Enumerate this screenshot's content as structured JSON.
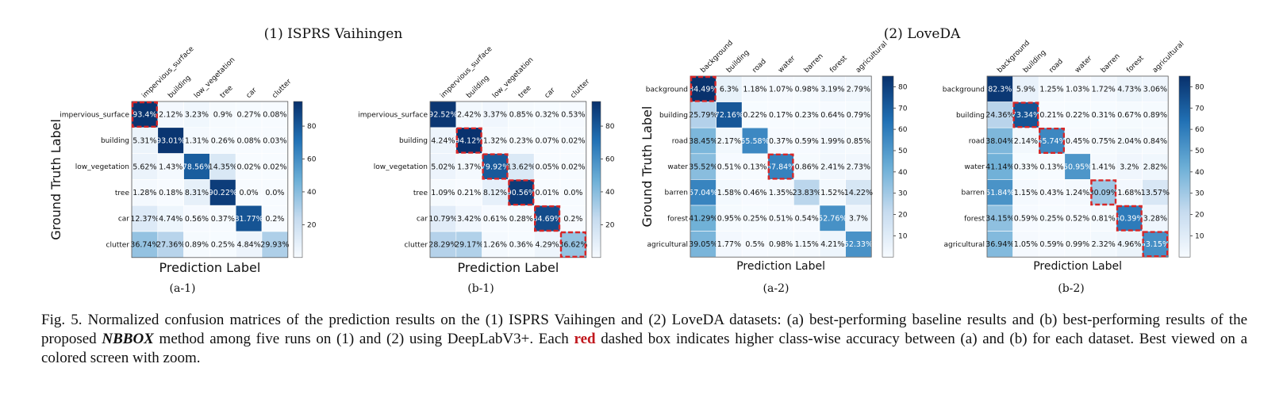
{
  "group_titles": [
    "(1) ISPRS Vaihingen",
    "(2) LoveDA"
  ],
  "caption": {
    "lead": "Fig. 5.",
    "part1": "  Normalized confusion matrices of the prediction results on the (1) ISPRS Vaihingen and (2) LoveDA datasets: (a) best-performing baseline results and (b) best-performing results of the proposed ",
    "method": "NBBOX",
    "part2": " method among five runs on (1) and (2) using DeepLabV3+. Each ",
    "red_word": "red",
    "part3": " dashed box indicates higher class-wise accuracy between (a) and (b) for each dataset. Best viewed on a colored screen with zoom."
  },
  "colors": {
    "cmap_low": "#f7fbff",
    "cmap_high": "#08306b",
    "highlight": "#d62728"
  },
  "chart_data": [
    {
      "type": "heatmap",
      "label": "(a-1)",
      "xlabel": "Prediction Label",
      "ylabel": "Ground Truth Label",
      "classes": [
        "impervious_surface",
        "building",
        "low_vegetation",
        "tree",
        "car",
        "clutter"
      ],
      "cells": [
        [
          "93.4%",
          "2.12%",
          "3.23%",
          "0.9%",
          "0.27%",
          "0.08%"
        ],
        [
          "5.31%",
          "93.01%",
          "1.31%",
          "0.26%",
          "0.08%",
          "0.03%"
        ],
        [
          "5.62%",
          "1.43%",
          "78.56%",
          "14.35%",
          "0.02%",
          "0.02%"
        ],
        [
          "1.28%",
          "0.18%",
          "8.31%",
          "90.22%",
          "0.0%",
          "0.0%"
        ],
        [
          "12.37%",
          "4.74%",
          "0.56%",
          "0.37%",
          "81.77%",
          "0.2%"
        ],
        [
          "36.74%",
          "27.36%",
          "0.89%",
          "0.25%",
          "4.84%",
          "29.93%"
        ]
      ],
      "highlight": [
        [
          0,
          0
        ]
      ],
      "colorbar": {
        "ticks": [
          20,
          40,
          60,
          80
        ],
        "range": [
          0,
          95
        ]
      }
    },
    {
      "type": "heatmap",
      "label": "(b-1)",
      "xlabel": "Prediction Label",
      "ylabel": "",
      "classes": [
        "impervious_surface",
        "building",
        "low_vegetation",
        "tree",
        "car",
        "clutter"
      ],
      "cells": [
        [
          "92.52%",
          "2.42%",
          "3.37%",
          "0.85%",
          "0.32%",
          "0.53%"
        ],
        [
          "4.24%",
          "94.12%",
          "1.32%",
          "0.23%",
          "0.07%",
          "0.02%"
        ],
        [
          "5.02%",
          "1.37%",
          "79.92%",
          "13.62%",
          "0.05%",
          "0.02%"
        ],
        [
          "1.09%",
          "0.21%",
          "8.12%",
          "90.56%",
          "0.01%",
          "0.0%"
        ],
        [
          "10.79%",
          "3.42%",
          "0.61%",
          "0.28%",
          "84.69%",
          "0.2%"
        ],
        [
          "28.29%",
          "29.17%",
          "1.26%",
          "0.36%",
          "4.29%",
          "36.62%"
        ]
      ],
      "highlight": [
        [
          1,
          1
        ],
        [
          2,
          2
        ],
        [
          3,
          3
        ],
        [
          4,
          4
        ],
        [
          5,
          5
        ]
      ],
      "colorbar": {
        "ticks": [
          20,
          40,
          60,
          80
        ],
        "range": [
          0,
          95
        ]
      }
    },
    {
      "type": "heatmap",
      "label": "(a-2)",
      "xlabel": "Prediction Label",
      "ylabel": "Ground Truth Label",
      "classes": [
        "background",
        "building",
        "road",
        "water",
        "barren",
        "forest",
        "agricultural"
      ],
      "cells": [
        [
          "84.49%",
          "6.3%",
          "1.18%",
          "1.07%",
          "0.98%",
          "3.19%",
          "2.79%"
        ],
        [
          "25.79%",
          "72.16%",
          "0.22%",
          "0.17%",
          "0.23%",
          "0.64%",
          "0.79%"
        ],
        [
          "38.45%",
          "2.17%",
          "55.58%",
          "0.37%",
          "0.59%",
          "1.99%",
          "0.85%"
        ],
        [
          "35.52%",
          "0.51%",
          "0.13%",
          "57.84%",
          "0.86%",
          "2.41%",
          "2.73%"
        ],
        [
          "57.04%",
          "1.58%",
          "0.46%",
          "1.35%",
          "23.83%",
          "1.52%",
          "14.22%"
        ],
        [
          "41.29%",
          "0.95%",
          "0.25%",
          "0.51%",
          "0.54%",
          "52.76%",
          "3.7%"
        ],
        [
          "39.05%",
          "1.77%",
          "0.5%",
          "0.98%",
          "1.15%",
          "4.21%",
          "52.33%"
        ]
      ],
      "highlight": [
        [
          0,
          0
        ],
        [
          3,
          3
        ]
      ],
      "colorbar": {
        "ticks": [
          10,
          20,
          30,
          40,
          50,
          60,
          70,
          80
        ],
        "range": [
          0,
          85
        ]
      }
    },
    {
      "type": "heatmap",
      "label": "(b-2)",
      "xlabel": "Prediction Label",
      "ylabel": "",
      "classes": [
        "background",
        "building",
        "road",
        "water",
        "barren",
        "forest",
        "agricultural"
      ],
      "cells": [
        [
          "82.3%",
          "5.9%",
          "1.25%",
          "1.03%",
          "1.72%",
          "4.73%",
          "3.06%"
        ],
        [
          "24.36%",
          "73.34%",
          "0.21%",
          "0.22%",
          "0.31%",
          "0.67%",
          "0.89%"
        ],
        [
          "38.04%",
          "2.14%",
          "55.74%",
          "0.45%",
          "0.75%",
          "2.04%",
          "0.84%"
        ],
        [
          "41.14%",
          "0.33%",
          "0.13%",
          "50.95%",
          "1.41%",
          "3.2%",
          "2.82%"
        ],
        [
          "51.84%",
          "1.15%",
          "0.43%",
          "1.24%",
          "30.09%",
          "1.68%",
          "13.57%"
        ],
        [
          "34.15%",
          "0.59%",
          "0.25%",
          "0.52%",
          "0.81%",
          "60.39%",
          "3.28%"
        ],
        [
          "36.94%",
          "1.05%",
          "0.59%",
          "0.99%",
          "2.32%",
          "4.96%",
          "53.15%"
        ]
      ],
      "highlight": [
        [
          1,
          1
        ],
        [
          2,
          2
        ],
        [
          4,
          4
        ],
        [
          5,
          5
        ],
        [
          6,
          6
        ]
      ],
      "colorbar": {
        "ticks": [
          10,
          20,
          30,
          40,
          50,
          60,
          70,
          80
        ],
        "range": [
          0,
          85
        ]
      }
    }
  ]
}
